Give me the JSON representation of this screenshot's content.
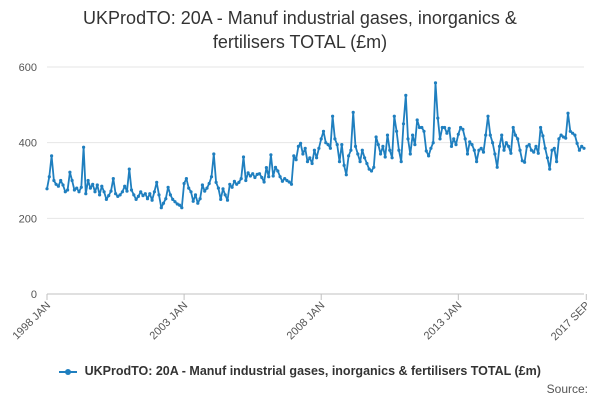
{
  "chart_data": {
    "type": "line",
    "title_lines": [
      "UKProdTO: 20A - Manuf industrial gases, inorganics &",
      "fertilisers TOTAL (£m)"
    ],
    "series_name": "UKProdTO: 20A - Manuf industrial gases, inorganics & fertilisers TOTAL (£m)",
    "series_color": "#1f7fbf",
    "ylim": [
      0,
      600
    ],
    "y_ticks": [
      "0",
      "200",
      "400",
      "600"
    ],
    "x_tick_labels": [
      "1998 JAN",
      "2003 JAN",
      "2008 JAN",
      "2013 JAN",
      "2017 SEP"
    ],
    "x_tick_months": [
      0,
      60,
      120,
      180,
      236
    ],
    "values": [
      278,
      310,
      365,
      300,
      290,
      285,
      300,
      288,
      270,
      275,
      322,
      300,
      275,
      280,
      270,
      282,
      388,
      265,
      300,
      280,
      290,
      270,
      288,
      262,
      285,
      270,
      250,
      260,
      272,
      305,
      265,
      258,
      262,
      270,
      285,
      272,
      330,
      275,
      262,
      250,
      258,
      270,
      260,
      265,
      252,
      265,
      248,
      270,
      295,
      262,
      228,
      240,
      252,
      282,
      262,
      250,
      244,
      238,
      235,
      228,
      292,
      305,
      280,
      270,
      245,
      262,
      240,
      252,
      288,
      272,
      280,
      292,
      310,
      370,
      295,
      280,
      250,
      278,
      262,
      248,
      290,
      282,
      298,
      290,
      295,
      305,
      362,
      300,
      320,
      312,
      318,
      308,
      316,
      318,
      308,
      296,
      334,
      310,
      368,
      312,
      335,
      325,
      310,
      298,
      305,
      300,
      296,
      290,
      365,
      355,
      390,
      398,
      370,
      385,
      350,
      360,
      345,
      380,
      360,
      385,
      410,
      430,
      400,
      395,
      385,
      470,
      410,
      395,
      350,
      395,
      340,
      315,
      365,
      380,
      480,
      390,
      370,
      350,
      380,
      360,
      345,
      330,
      325,
      335,
      415,
      395,
      370,
      390,
      362,
      420,
      380,
      360,
      470,
      430,
      380,
      350,
      450,
      525,
      410,
      370,
      420,
      395,
      460,
      440,
      440,
      430,
      378,
      365,
      385,
      400,
      558,
      465,
      410,
      440,
      440,
      425,
      438,
      390,
      410,
      395,
      422,
      440,
      435,
      410,
      370,
      402,
      395,
      380,
      350,
      380,
      385,
      375,
      420,
      470,
      420,
      400,
      370,
      335,
      390,
      420,
      380,
      400,
      390,
      372,
      440,
      420,
      410,
      380,
      352,
      348,
      390,
      395,
      380,
      375,
      390,
      372,
      440,
      418,
      385,
      360,
      330,
      380,
      385,
      350,
      410,
      420,
      415,
      412,
      478,
      430,
      425,
      420,
      398,
      380,
      390,
      385
    ],
    "source_label": "Source:"
  }
}
